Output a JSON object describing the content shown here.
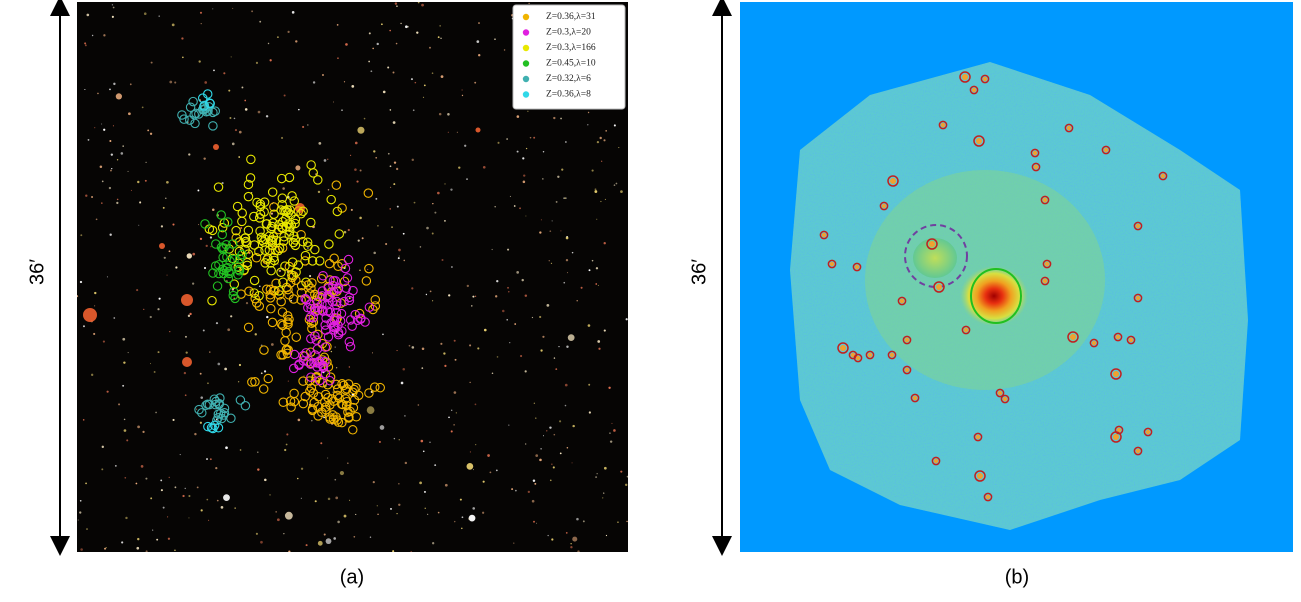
{
  "panels": [
    {
      "caption": "(a)",
      "scale_label": "36′",
      "legend": [
        {
          "label": "Z=0.36,λ=31",
          "color": "#f0b400"
        },
        {
          "label": "Z=0.3,λ=20",
          "color": "#e020e0"
        },
        {
          "label": "Z=0.3,λ=166",
          "color": "#e8e800"
        },
        {
          "label": "Z=0.45,λ=10",
          "color": "#22c022"
        },
        {
          "label": "Z=0.32,λ=6",
          "color": "#40b0b0"
        },
        {
          "label": "Z=0.36,λ=8",
          "color": "#30d8e8"
        }
      ]
    },
    {
      "caption": "(b)",
      "scale_label": "36′"
    }
  ]
}
